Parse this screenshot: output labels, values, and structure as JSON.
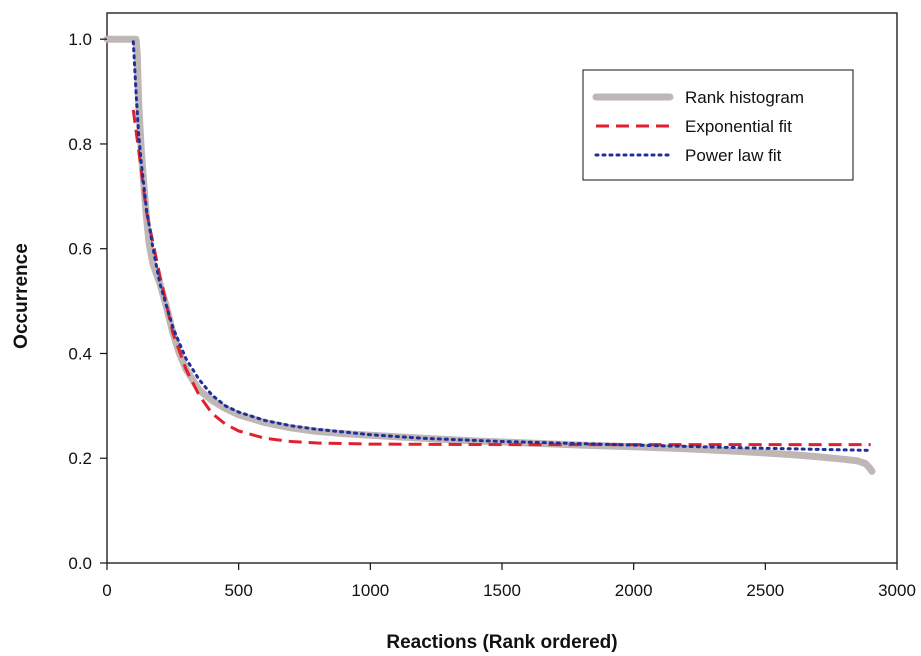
{
  "chart_data": {
    "type": "line",
    "title": "",
    "xlabel": "Reactions (Rank ordered)",
    "ylabel": "Occurrence",
    "xlim": [
      0,
      3000
    ],
    "ylim": [
      0.0,
      1.05
    ],
    "x_ticks": [
      0,
      500,
      1000,
      1500,
      2000,
      2500,
      3000
    ],
    "x_tick_labels": [
      "0",
      "500",
      "1000",
      "1500",
      "2000",
      "2500",
      "3000"
    ],
    "y_ticks": [
      0.0,
      0.2,
      0.4,
      0.6,
      0.8,
      1.0
    ],
    "y_tick_labels": [
      "0.0",
      "0.2",
      "0.4",
      "0.6",
      "0.8",
      "1.0"
    ],
    "grid": false,
    "legend_position": "top-right",
    "series": [
      {
        "name": "Rank histogram",
        "color": "#bfb7b5",
        "style": "solid",
        "points": [
          [
            0,
            1.0
          ],
          [
            50,
            1.0
          ],
          [
            100,
            1.0
          ],
          [
            110,
            1.0
          ],
          [
            115,
            0.97
          ],
          [
            120,
            0.88
          ],
          [
            130,
            0.79
          ],
          [
            140,
            0.72
          ],
          [
            150,
            0.66
          ],
          [
            160,
            0.61
          ],
          [
            175,
            0.57
          ],
          [
            200,
            0.535
          ],
          [
            225,
            0.49
          ],
          [
            250,
            0.44
          ],
          [
            275,
            0.4
          ],
          [
            300,
            0.37
          ],
          [
            350,
            0.33
          ],
          [
            400,
            0.31
          ],
          [
            450,
            0.295
          ],
          [
            500,
            0.283
          ],
          [
            600,
            0.268
          ],
          [
            700,
            0.258
          ],
          [
            800,
            0.251
          ],
          [
            900,
            0.247
          ],
          [
            1000,
            0.244
          ],
          [
            1200,
            0.238
          ],
          [
            1400,
            0.233
          ],
          [
            1600,
            0.229
          ],
          [
            1800,
            0.225
          ],
          [
            2000,
            0.222
          ],
          [
            2200,
            0.218
          ],
          [
            2400,
            0.213
          ],
          [
            2600,
            0.207
          ],
          [
            2700,
            0.203
          ],
          [
            2800,
            0.198
          ],
          [
            2850,
            0.195
          ],
          [
            2880,
            0.19
          ],
          [
            2895,
            0.182
          ],
          [
            2905,
            0.175
          ]
        ]
      },
      {
        "name": "Exponential fit",
        "color": "#e0202c",
        "style": "dashed",
        "points": [
          [
            100,
            0.865
          ],
          [
            125,
            0.77
          ],
          [
            150,
            0.67
          ],
          [
            200,
            0.55
          ],
          [
            250,
            0.44
          ],
          [
            300,
            0.37
          ],
          [
            350,
            0.32
          ],
          [
            400,
            0.285
          ],
          [
            450,
            0.265
          ],
          [
            500,
            0.252
          ],
          [
            600,
            0.238
          ],
          [
            700,
            0.232
          ],
          [
            800,
            0.229
          ],
          [
            1000,
            0.227
          ],
          [
            1500,
            0.226
          ],
          [
            2000,
            0.226
          ],
          [
            2500,
            0.226
          ],
          [
            2900,
            0.226
          ]
        ]
      },
      {
        "name": "Power law fit",
        "color": "#1f2f9b",
        "style": "dotted",
        "points": [
          [
            100,
            0.995
          ],
          [
            110,
            0.9
          ],
          [
            120,
            0.82
          ],
          [
            130,
            0.765
          ],
          [
            140,
            0.72
          ],
          [
            150,
            0.675
          ],
          [
            175,
            0.6
          ],
          [
            200,
            0.535
          ],
          [
            250,
            0.45
          ],
          [
            300,
            0.39
          ],
          [
            350,
            0.35
          ],
          [
            400,
            0.32
          ],
          [
            450,
            0.3
          ],
          [
            500,
            0.288
          ],
          [
            600,
            0.272
          ],
          [
            700,
            0.262
          ],
          [
            800,
            0.255
          ],
          [
            1000,
            0.245
          ],
          [
            1200,
            0.238
          ],
          [
            1500,
            0.232
          ],
          [
            2000,
            0.225
          ],
          [
            2500,
            0.219
          ],
          [
            2900,
            0.215
          ]
        ]
      }
    ]
  }
}
